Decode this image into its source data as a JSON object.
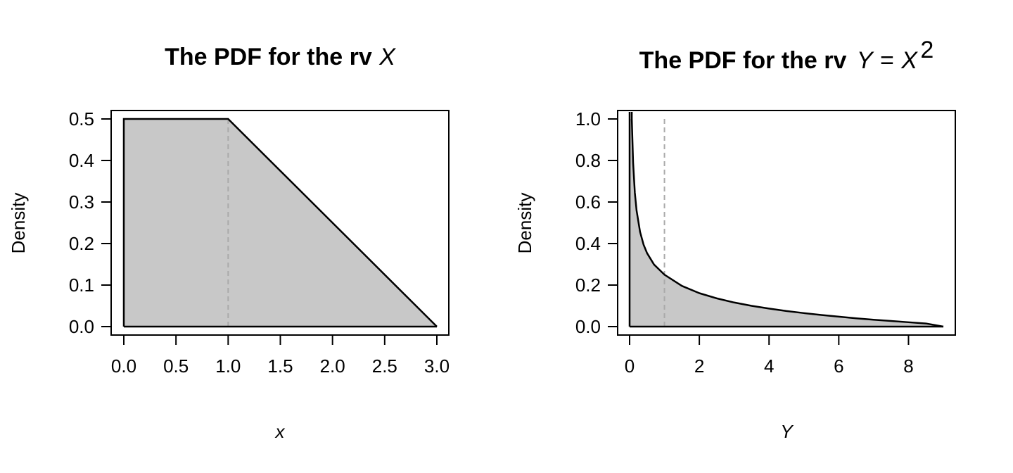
{
  "chart_data": [
    {
      "type": "area",
      "title_prefix": "The PDF for the rv",
      "title_var": "X",
      "xlabel": "x",
      "ylabel": "Density",
      "xlim": [
        0,
        3
      ],
      "ylim": [
        0,
        0.5
      ],
      "xticks": [
        "0.0",
        "0.5",
        "1.0",
        "1.5",
        "2.0",
        "2.5",
        "3.0"
      ],
      "xtick_values": [
        0,
        0.5,
        1,
        1.5,
        2,
        2.5,
        3
      ],
      "yticks": [
        "0.0",
        "0.1",
        "0.2",
        "0.3",
        "0.4",
        "0.5"
      ],
      "ytick_values": [
        0,
        0.1,
        0.2,
        0.3,
        0.4,
        0.5
      ],
      "x": [
        0,
        0,
        1,
        3
      ],
      "y": [
        0,
        0.5,
        0.5,
        0
      ],
      "vline": 1,
      "fill_color": "#c8c8c8",
      "line_color": "#000000",
      "vline_color": "#aaaaaa",
      "grid": false,
      "legend": "none"
    },
    {
      "type": "area",
      "title_prefix": "The PDF for the rv",
      "title_var_y": "Y",
      "title_eq": "=",
      "title_var_x": "X",
      "title_exp": "2",
      "xlabel": "Y",
      "ylabel": "Density",
      "xlim": [
        0,
        9
      ],
      "ylim": [
        0,
        1
      ],
      "xticks": [
        "0",
        "2",
        "4",
        "6",
        "8"
      ],
      "xtick_values": [
        0,
        2,
        4,
        6,
        8
      ],
      "yticks": [
        "0.0",
        "0.2",
        "0.4",
        "0.6",
        "0.8",
        "1.0"
      ],
      "ytick_values": [
        0,
        0.2,
        0.4,
        0.6,
        0.8,
        1.0
      ],
      "x": [
        0.0625,
        0.1,
        0.15,
        0.2,
        0.3,
        0.4,
        0.5,
        0.7,
        1.0,
        1.5,
        2,
        2.5,
        3,
        3.5,
        4,
        4.5,
        5,
        5.5,
        6,
        6.5,
        7,
        7.5,
        8,
        8.5,
        9
      ],
      "y": [
        1.0,
        0.791,
        0.645,
        0.559,
        0.456,
        0.395,
        0.354,
        0.299,
        0.25,
        0.196,
        0.161,
        0.136,
        0.116,
        0.1,
        0.087,
        0.075,
        0.065,
        0.056,
        0.048,
        0.04,
        0.033,
        0.027,
        0.021,
        0.015,
        0.0
      ],
      "vline": 1,
      "fill_color": "#c8c8c8",
      "line_color": "#000000",
      "vline_color": "#aaaaaa",
      "grid": false,
      "legend": "none"
    }
  ]
}
